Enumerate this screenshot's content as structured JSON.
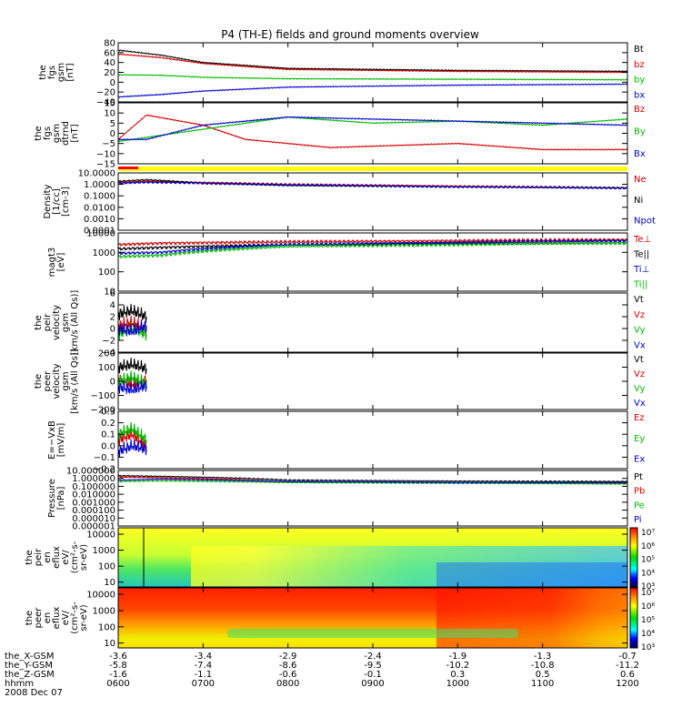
{
  "title": "P4 (TH-E) fields and ground moments overview",
  "x_ticks": [
    "0600",
    "0700",
    "0800",
    "0900",
    "1000",
    "1100",
    "1200"
  ],
  "orbit": {
    "labels": [
      "the_X-GSM",
      "the_Y-GSM",
      "the_Z-GSM",
      "hhmm",
      "2008 Dec 07"
    ],
    "rows": [
      [
        "-3.6",
        "-3.4",
        "-2.9",
        "-2.4",
        "-1.9",
        "-1.3",
        "-0.7"
      ],
      [
        "-5.8",
        "-7.4",
        "-8.6",
        "-9.5",
        "-10.2",
        "-10.8",
        "-11.2"
      ],
      [
        "-1.6",
        "-1.1",
        "-0.6",
        "-0.1",
        "0.3",
        "0.5",
        "0.6"
      ]
    ]
  },
  "colorbar_ticks": [
    "10⁷",
    "10⁶",
    "10⁵",
    "10⁴",
    "10³"
  ],
  "chart_data": [
    {
      "type": "line",
      "id": "fgs",
      "ylabel": [
        "the",
        "fgs",
        "gsm",
        "[nT]"
      ],
      "ylim": [
        -40,
        80
      ],
      "yticks": [
        "80",
        "60",
        "40",
        "20",
        "0",
        "−20",
        "−40"
      ],
      "ytick_values": [
        80,
        60,
        40,
        20,
        0,
        -20,
        -40
      ],
      "series": [
        {
          "name": "Bt",
          "color": "#000000",
          "x": [
            "06:00",
            "06:30",
            "07:00",
            "08:00",
            "10:00",
            "12:00"
          ],
          "y": [
            65,
            55,
            40,
            28,
            24,
            22
          ]
        },
        {
          "name": "bz",
          "color": "#d00000",
          "x": [
            "06:00",
            "06:30",
            "07:00",
            "08:00",
            "10:00",
            "12:00"
          ],
          "y": [
            57,
            50,
            38,
            26,
            22,
            20
          ]
        },
        {
          "name": "by",
          "color": "#00bb00",
          "x": [
            "06:00",
            "06:30",
            "07:00",
            "08:00",
            "10:00",
            "12:00"
          ],
          "y": [
            15,
            14,
            10,
            7,
            6,
            5
          ]
        },
        {
          "name": "bx",
          "color": "#0000cc",
          "x": [
            "06:00",
            "06:30",
            "07:00",
            "08:00",
            "10:00",
            "12:00"
          ],
          "y": [
            -30,
            -25,
            -18,
            -10,
            -6,
            -4
          ]
        }
      ]
    },
    {
      "type": "line",
      "id": "fgs_dtrnd",
      "ylabel": [
        "the",
        "fgs",
        "gsm",
        "dtrnd",
        "[nT]"
      ],
      "ylim": [
        -15,
        15
      ],
      "yticks": [
        "15",
        "10",
        "5",
        "0",
        "−5",
        "−10",
        "−15"
      ],
      "ytick_values": [
        15,
        10,
        5,
        0,
        -5,
        -10,
        -15
      ],
      "series": [
        {
          "name": "Bz",
          "color": "#d00000",
          "x": [
            "06:00",
            "06:20",
            "07:00",
            "07:30",
            "08:30",
            "10:00",
            "11:00",
            "12:00"
          ],
          "y": [
            -3,
            9,
            4,
            -3,
            -7,
            -5,
            -8,
            -8
          ]
        },
        {
          "name": "By",
          "color": "#00bb00",
          "x": [
            "06:00",
            "06:20",
            "07:00",
            "08:00",
            "09:00",
            "10:00",
            "11:00",
            "12:00"
          ],
          "y": [
            -4,
            -2,
            2,
            8,
            5,
            6,
            4,
            7
          ]
        },
        {
          "name": "Bx",
          "color": "#0000cc",
          "x": [
            "06:00",
            "06:20",
            "07:00",
            "08:00",
            "09:00",
            "10:00",
            "11:00",
            "12:00"
          ],
          "y": [
            -3,
            -3,
            4,
            8,
            7,
            6,
            5,
            4
          ]
        }
      ]
    },
    {
      "type": "line",
      "id": "density",
      "ylabel": [
        "Density",
        "[1/cc]",
        "[cm-3]"
      ],
      "log": true,
      "ylim": [
        0.0001,
        10
      ],
      "yticks": [
        "10.0000",
        "1.0000",
        "0.1000",
        "0.0100",
        "0.0010",
        "0.0001"
      ],
      "ytick_values": [
        10,
        1,
        0.1,
        0.01,
        0.001,
        0.0001
      ],
      "series": [
        {
          "name": "Ne",
          "color": "#d00000",
          "x": [
            "06:00",
            "06:20",
            "08:00",
            "10:00",
            "12:00"
          ],
          "y": [
            1.4,
            1.8,
            1.0,
            0.7,
            0.5
          ]
        },
        {
          "name": "Ni",
          "color": "#000000",
          "x": [
            "06:00",
            "06:20",
            "07:00",
            "08:00",
            "10:00",
            "12:00"
          ],
          "y": [
            1.8,
            2.5,
            1.2,
            0.8,
            0.6,
            0.5
          ]
        },
        {
          "name": "Npot",
          "color": "#0000cc",
          "x": [
            "06:00",
            "06:20",
            "08:00",
            "10:00",
            "12:00"
          ],
          "y": [
            1.2,
            1.5,
            0.9,
            0.6,
            0.45
          ]
        }
      ]
    },
    {
      "type": "line",
      "id": "temp",
      "ylabel": [
        "magt3",
        "[eV]"
      ],
      "log": true,
      "ylim": [
        10,
        10000
      ],
      "yticks": [
        "10000",
        "1000",
        "100",
        "10"
      ],
      "ytick_values": [
        10000,
        1000,
        100,
        10
      ],
      "series": [
        {
          "name": "Te⊥",
          "color": "#d00000",
          "x": [
            "06:00",
            "06:30",
            "08:00",
            "10:00",
            "12:00"
          ],
          "y": [
            2500,
            3000,
            3500,
            4000,
            4500
          ]
        },
        {
          "name": "Te||",
          "color": "#000000",
          "x": [
            "06:00",
            "06:30",
            "08:00",
            "10:00",
            "12:00"
          ],
          "y": [
            1500,
            1800,
            2500,
            2800,
            3000
          ]
        },
        {
          "name": "Ti⊥",
          "color": "#0000cc",
          "x": [
            "06:00",
            "06:30",
            "08:00",
            "10:00",
            "12:00"
          ],
          "y": [
            900,
            1000,
            2500,
            3200,
            4000
          ]
        },
        {
          "name": "Ti||",
          "color": "#00bb00",
          "x": [
            "06:00",
            "06:30",
            "08:00",
            "10:00",
            "12:00"
          ],
          "y": [
            600,
            700,
            2000,
            2500,
            3000
          ]
        }
      ]
    },
    {
      "type": "line",
      "id": "peir_v",
      "ylabel": [
        "the",
        "peir",
        "velocity",
        "gsm",
        "[km/s (All Qs)]"
      ],
      "ylim": [
        -4,
        6
      ],
      "yticks": [
        "6",
        "4",
        "2",
        "0",
        "−2",
        "−4"
      ],
      "ytick_values": [
        6,
        4,
        2,
        0,
        -2,
        -4
      ],
      "series": [
        {
          "name": "Vt",
          "color": "#000000",
          "x": [
            "06:00",
            "06:10",
            "06:20"
          ],
          "y": [
            2.5,
            3,
            2
          ]
        },
        {
          "name": "Vz",
          "color": "#d00000",
          "x": [
            "06:00",
            "06:10",
            "06:20"
          ],
          "y": [
            0.5,
            1,
            0
          ]
        },
        {
          "name": "Vy",
          "color": "#00bb00",
          "x": [
            "06:00",
            "06:10",
            "06:20"
          ],
          "y": [
            -1,
            0,
            -1
          ]
        },
        {
          "name": "Vx",
          "color": "#0000cc",
          "x": [
            "06:00",
            "06:10",
            "06:20"
          ],
          "y": [
            0,
            -0.5,
            0.5
          ]
        }
      ]
    },
    {
      "type": "line",
      "id": "peer_v",
      "ylabel": [
        "the",
        "peer",
        "velocity",
        "gsm",
        "[km/s (All Qs)]"
      ],
      "ylim": [
        -200,
        200
      ],
      "yticks": [
        "200",
        "100",
        "0",
        "−100",
        "−200"
      ],
      "ytick_values": [
        200,
        100,
        0,
        -100,
        -200
      ],
      "series": [
        {
          "name": "Vt",
          "color": "#000000",
          "x": [
            "06:00",
            "06:10",
            "06:20"
          ],
          "y": [
            100,
            120,
            90
          ]
        },
        {
          "name": "Vz",
          "color": "#d00000",
          "x": [
            "06:00",
            "06:10",
            "06:20"
          ],
          "y": [
            20,
            -20,
            10
          ]
        },
        {
          "name": "Vy",
          "color": "#00bb00",
          "x": [
            "06:00",
            "06:10",
            "06:20"
          ],
          "y": [
            0,
            30,
            -20
          ]
        },
        {
          "name": "Vx",
          "color": "#0000cc",
          "x": [
            "06:00",
            "06:10",
            "06:20"
          ],
          "y": [
            -40,
            -60,
            -30
          ]
        }
      ]
    },
    {
      "type": "line",
      "id": "efield",
      "ylabel": [
        "E=−VxB",
        "[mV/m]"
      ],
      "ylim": [
        -0.2,
        0.3
      ],
      "yticks": [
        "0.3",
        "0.2",
        "0.1",
        "0.0",
        "−0.1",
        "−0.2"
      ],
      "ytick_values": [
        0.3,
        0.2,
        0.1,
        0,
        -0.1,
        -0.2
      ],
      "series": [
        {
          "name": "Ez",
          "color": "#d00000",
          "x": [
            "06:00",
            "06:10",
            "06:20"
          ],
          "y": [
            0.05,
            0.1,
            0.0
          ]
        },
        {
          "name": "Ey",
          "color": "#00bb00",
          "x": [
            "06:00",
            "06:10",
            "06:20"
          ],
          "y": [
            0.1,
            0.15,
            0.05
          ]
        },
        {
          "name": "Ex",
          "color": "#0000cc",
          "x": [
            "06:00",
            "06:10",
            "06:20"
          ],
          "y": [
            -0.05,
            0.0,
            -0.03
          ]
        }
      ]
    },
    {
      "type": "line",
      "id": "pressure",
      "ylabel": [
        "Pressure",
        "[nPa]"
      ],
      "log": true,
      "ylim": [
        1e-06,
        10
      ],
      "yticks": [
        "10.000000",
        "1.000000",
        "0.100000",
        "0.010000",
        "0.001000",
        "0.000100",
        "0.000010",
        "0.000001"
      ],
      "ytick_values": [
        10,
        1,
        0.1,
        0.01,
        0.001,
        0.0001,
        1e-05,
        1e-06
      ],
      "series": [
        {
          "name": "Pt",
          "color": "#000000",
          "x": [
            "06:00",
            "06:30",
            "08:00",
            "10:00",
            "12:00"
          ],
          "y": [
            2.2,
            1.8,
            0.6,
            0.45,
            0.4
          ]
        },
        {
          "name": "Pb",
          "color": "#d00000",
          "x": [
            "06:00",
            "06:30",
            "08:00",
            "10:00",
            "12:00"
          ],
          "y": [
            1.5,
            1.2,
            0.35,
            0.28,
            0.25
          ]
        },
        {
          "name": "Pe",
          "color": "#00bb00",
          "x": [
            "06:00",
            "06:30",
            "08:00",
            "10:00",
            "12:00"
          ],
          "y": [
            0.4,
            0.5,
            0.3,
            0.25,
            0.2
          ]
        },
        {
          "name": "Pi",
          "color": "#0000cc",
          "x": [
            "06:00",
            "06:30",
            "08:00",
            "10:00",
            "12:00"
          ],
          "y": [
            0.6,
            0.8,
            0.4,
            0.3,
            0.3
          ]
        }
      ]
    },
    {
      "type": "heatmap",
      "id": "peir_spec",
      "ylabel": [
        "the",
        "peir",
        "en",
        "eflux",
        "eV/",
        "(cm²-s-",
        "sr-eV)"
      ],
      "log": true,
      "ylim": [
        5,
        25000
      ],
      "yticks": [
        "10000",
        "1000",
        "100",
        "10"
      ],
      "ytick_values": [
        10000,
        1000,
        100,
        10
      ]
    },
    {
      "type": "heatmap",
      "id": "peer_spec",
      "ylabel": [
        "the",
        "peer",
        "en",
        "eflux",
        "eV/",
        "(cm²-s-",
        "sr-eV)"
      ],
      "log": true,
      "ylim": [
        5,
        25000
      ],
      "yticks": [
        "10000",
        "1000",
        "100",
        "10"
      ],
      "ytick_values": [
        10000,
        1000,
        100,
        10
      ]
    }
  ]
}
